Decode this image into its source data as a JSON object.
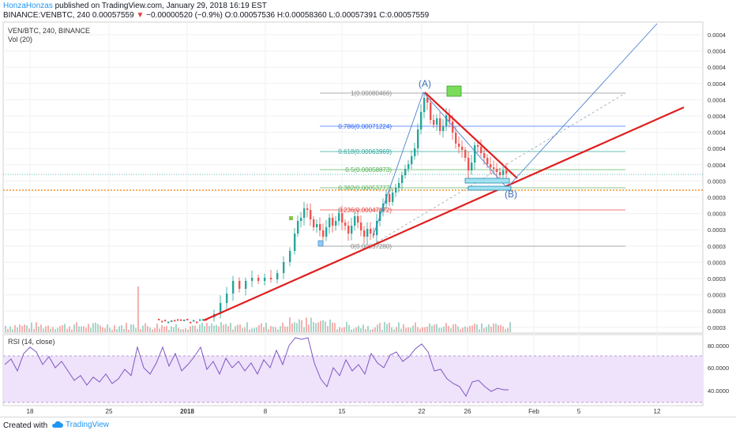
{
  "header": {
    "author": "HonzaHonzas",
    "published": "published on TradingView.com, January 29, 2018 16:19 EST",
    "symbol": "BINANCE:VENBTC, 240",
    "last": "0.00057559",
    "change": "−0.00000520 (−0.9%)",
    "ohlc": "O:0.00057536 H:0.00058360 L:0.00057391 C:0.00057559"
  },
  "pane": {
    "title": "VEN/BTC, 240, BINANCE",
    "vol_label": "Vol (20)",
    "rsi_label": "RSI (14, close)"
  },
  "price_axis": {
    "ticks": [
      "0.0004",
      "0.0004",
      "0.0004",
      "0.0004",
      "0.0004",
      "0.0004",
      "0.0004",
      "0.0004",
      "0.0004",
      "0.0003",
      "0.0003",
      "0.0003",
      "0.0003",
      "0.0003",
      "0.0003",
      "0.0003",
      "0.0003",
      "0.0003",
      "0.0003"
    ]
  },
  "rsi_axis": {
    "ticks": [
      "80.0000",
      "60.0000",
      "40.0000"
    ]
  },
  "time_axis": {
    "ticks": [
      "18",
      "25",
      "2018",
      "8",
      "15",
      "22",
      "26",
      "Feb",
      "5",
      "12"
    ]
  },
  "fib": [
    {
      "label": "1(0.00080466)",
      "color": "#888888"
    },
    {
      "label": "0.786(0.00071224)",
      "color": "#2962ff"
    },
    {
      "label": "0.618(0.00063969)",
      "color": "#26a69a"
    },
    {
      "label": "0.5(0.00058873)",
      "color": "#4caf50"
    },
    {
      "label": "0.382(0.00053777)",
      "color": "#4caf50"
    },
    {
      "label": "0.236(0.00047472)",
      "color": "#e53935"
    },
    {
      "label": "0(0.00037280)",
      "color": "#888888"
    }
  ],
  "annotations": {
    "wave_a": "(A)",
    "wave_b": "(B)"
  },
  "footer": {
    "created_with": "Created with",
    "brand": "TradingView"
  },
  "colors": {
    "up": "#26a69a",
    "down": "#ef5350",
    "trend": "#e01e1e",
    "rsi": "#7e57c2"
  }
}
